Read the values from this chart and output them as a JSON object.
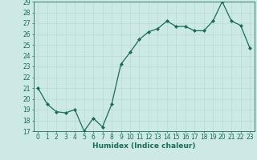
{
  "x": [
    0,
    1,
    2,
    3,
    4,
    5,
    6,
    7,
    8,
    9,
    10,
    11,
    12,
    13,
    14,
    15,
    16,
    17,
    18,
    19,
    20,
    21,
    22,
    23
  ],
  "y": [
    21.0,
    19.5,
    18.8,
    18.7,
    19.0,
    17.0,
    18.2,
    17.4,
    19.5,
    23.2,
    24.3,
    25.5,
    26.2,
    26.5,
    27.2,
    26.7,
    26.7,
    26.3,
    26.3,
    27.2,
    29.0,
    27.2,
    26.8,
    24.7
  ],
  "xlabel": "Humidex (Indice chaleur)",
  "xlim": [
    -0.5,
    23.5
  ],
  "ylim": [
    17,
    29
  ],
  "yticks": [
    17,
    18,
    19,
    20,
    21,
    22,
    23,
    24,
    25,
    26,
    27,
    28,
    29
  ],
  "xticks": [
    0,
    1,
    2,
    3,
    4,
    5,
    6,
    7,
    8,
    9,
    10,
    11,
    12,
    13,
    14,
    15,
    16,
    17,
    18,
    19,
    20,
    21,
    22,
    23
  ],
  "line_color": "#1a6b5a",
  "bg_color": "#cce9e5",
  "grid_color": "#b0d8d4",
  "marker": "D",
  "marker_size": 2.0,
  "line_width": 0.9,
  "label_fontsize": 6.5,
  "tick_fontsize": 5.5
}
